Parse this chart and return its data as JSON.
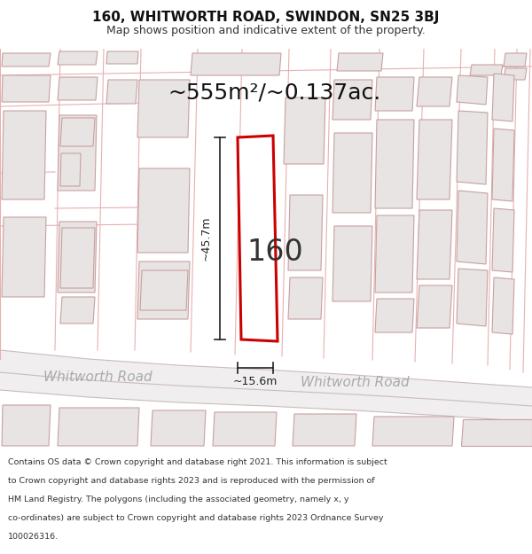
{
  "title_line1": "160, WHITWORTH ROAD, SWINDON, SN25 3BJ",
  "title_line2": "Map shows position and indicative extent of the property.",
  "area_label": "~555m²/~0.137ac.",
  "property_number": "160",
  "dim_width": "~15.6m",
  "dim_height": "~45.7m",
  "street_label_left": "Whitworth Road",
  "street_label_right": "Whitworth Road",
  "footer_lines": [
    "Contains OS data © Crown copyright and database right 2021. This information is subject",
    "to Crown copyright and database rights 2023 and is reproduced with the permission of",
    "HM Land Registry. The polygons (including the associated geometry, namely x, y",
    "co-ordinates) are subject to Crown copyright and database rights 2023 Ordnance Survey",
    "100026316."
  ],
  "map_bg": "#f7f4f4",
  "building_fill": "#e8e4e4",
  "building_stroke": "#c8a0a0",
  "road_line_color": "#e8b0b0",
  "road_bg": "#f0ecec",
  "property_fill": "#ffffff",
  "property_stroke": "#cc0000",
  "dim_line_color": "#222222",
  "road_label_color": "#aaaaaa",
  "title_bg": "#ffffff",
  "footer_bg": "#ffffff",
  "title_fontsize": 11,
  "subtitle_fontsize": 9,
  "area_fontsize": 18,
  "num_fontsize": 24,
  "dim_fontsize": 9,
  "road_label_fontsize": 11,
  "footer_fontsize": 6.8
}
